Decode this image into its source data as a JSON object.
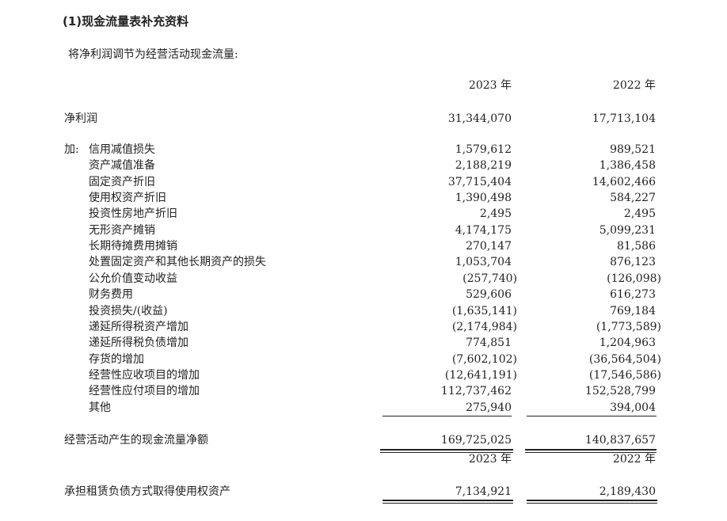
{
  "title": "(1)现金流量表补充资料",
  "subtitle": "将净利润调节为经营活动现金流量:",
  "headers": [
    "2023 年",
    "2022 年"
  ],
  "net_profit": {
    "label": "净利润",
    "v2023": "31,344,070",
    "v2022": "17,713,104"
  },
  "add_prefix": "加:",
  "items": [
    {
      "label": "信用减值损失",
      "v2023": "1,579,612",
      "v2022": "989,521"
    },
    {
      "label": "资产减值准备",
      "v2023": "2,188,219",
      "v2022": "1,386,458"
    },
    {
      "label": "固定资产折旧",
      "v2023": "37,715,404",
      "v2022": "14,602,466"
    },
    {
      "label": "使用权资产折旧",
      "v2023": "1,390,498",
      "v2022": "584,227"
    },
    {
      "label": "投资性房地产折旧",
      "v2023": "2,495",
      "v2022": "2,495"
    },
    {
      "label": "无形资产摊销",
      "v2023": "4,174,175",
      "v2022": "5,099,231"
    },
    {
      "label": "长期待摊费用摊销",
      "v2023": "270,147",
      "v2022": "81,586"
    },
    {
      "label": "处置固定资产和其他长期资产的损失",
      "v2023": "1,053,704",
      "v2022": "876,123"
    },
    {
      "label": "公允价值变动收益",
      "v2023": "(257,740)",
      "v2022": "(126,098)"
    },
    {
      "label": "财务费用",
      "v2023": "529,606",
      "v2022": "616,273"
    },
    {
      "label": "投资损失/(收益)",
      "v2023": "(1,635,141)",
      "v2022": "769,184"
    },
    {
      "label": "递延所得税资产增加",
      "v2023": "(2,174,984)",
      "v2022": "(1,773,589)"
    },
    {
      "label": "递延所得税负债增加",
      "v2023": "774,851",
      "v2022": "1,204,963"
    },
    {
      "label": "存货的增加",
      "v2023": "(7,602,102)",
      "v2022": "(36,564,504)"
    },
    {
      "label": "经营性应收项目的增加",
      "v2023": "(12,641,191)",
      "v2022": "(17,546,586)"
    },
    {
      "label": "经营性应付项目的增加",
      "v2023": "112,737,462",
      "v2022": "152,528,799"
    },
    {
      "label": "其他",
      "v2023": "275,940",
      "v2022": "394,004"
    }
  ],
  "net_cash": {
    "label": "经营活动产生的现金流量净额",
    "v2023": "169,725,025",
    "v2022": "140,837,657"
  },
  "headers2": [
    "2023 年",
    "2022 年"
  ],
  "rou": {
    "label": "承担租赁负债方式取得使用权资产",
    "v2023": "7,134,921",
    "v2022": "2,189,430"
  }
}
